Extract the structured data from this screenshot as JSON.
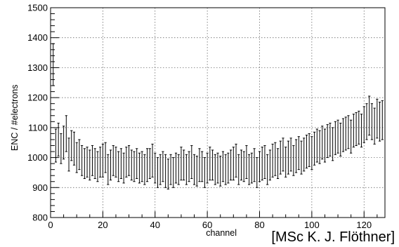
{
  "chart_data": {
    "type": "scatter",
    "style": "errorbar",
    "title": "",
    "xlabel": "channel",
    "ylabel": "ENC / #electrons",
    "xlim": [
      0,
      128
    ],
    "ylim": [
      800,
      1500
    ],
    "xticks": [
      0,
      20,
      40,
      60,
      80,
      100,
      120
    ],
    "yticks": [
      800,
      900,
      1000,
      1100,
      1200,
      1300,
      1400,
      1500
    ],
    "grid": true,
    "series": [
      {
        "x": [
          1,
          2,
          3,
          4,
          5,
          6,
          7,
          8,
          9,
          10,
          11,
          12,
          13,
          14,
          15,
          16,
          17,
          18,
          19,
          20,
          21,
          22,
          23,
          24,
          25,
          26,
          27,
          28,
          29,
          30,
          31,
          32,
          33,
          34,
          35,
          36,
          37,
          38,
          39,
          40,
          41,
          42,
          43,
          44,
          45,
          46,
          47,
          48,
          49,
          50,
          51,
          52,
          53,
          54,
          55,
          56,
          57,
          58,
          59,
          60,
          61,
          62,
          63,
          64,
          65,
          66,
          67,
          68,
          69,
          70,
          71,
          72,
          73,
          74,
          75,
          76,
          77,
          78,
          79,
          80,
          81,
          82,
          83,
          84,
          85,
          86,
          87,
          88,
          89,
          90,
          91,
          92,
          93,
          94,
          95,
          96,
          97,
          98,
          99,
          100,
          101,
          102,
          103,
          104,
          105,
          106,
          107,
          108,
          109,
          110,
          111,
          112,
          113,
          114,
          115,
          116,
          117,
          118,
          119,
          120,
          121,
          122,
          123,
          124,
          125,
          126,
          127
        ],
        "y": [
          1310,
          1040,
          1060,
          1030,
          1050,
          1080,
          1010,
          1040,
          1030,
          1000,
          1010,
          990,
          980,
          985,
          975,
          990,
          980,
          970,
          985,
          990,
          1000,
          960,
          975,
          990,
          985,
          970,
          980,
          965,
          985,
          990,
          975,
          970,
          980,
          965,
          970,
          960,
          975,
          980,
          990,
          965,
          950,
          960,
          970,
          955,
          945,
          960,
          950,
          965,
          960,
          980,
          975,
          960,
          970,
          985,
          960,
          955,
          975,
          970,
          950,
          965,
          980,
          975,
          960,
          965,
          955,
          970,
          960,
          965,
          975,
          980,
          990,
          960,
          975,
          970,
          985,
          960,
          965,
          975,
          950,
          970,
          980,
          985,
          960,
          975,
          990,
          995,
          980,
          1000,
          1010,
          985,
          1000,
          1010,
          990,
          1005,
          1015,
          1000,
          1010,
          1020,
          1025,
          1015,
          1030,
          1040,
          1035,
          1050,
          1040,
          1055,
          1060,
          1045,
          1065,
          1070,
          1060,
          1075,
          1080,
          1085,
          1070,
          1090,
          1095,
          1100,
          1090,
          1110,
          1120,
          1140,
          1120,
          1105,
          1130,
          1120,
          1125
        ],
        "error": [
          70,
          55,
          55,
          50,
          55,
          60,
          55,
          50,
          55,
          50,
          50,
          50,
          50,
          50,
          50,
          50,
          50,
          50,
          50,
          55,
          50,
          50,
          50,
          50,
          50,
          50,
          50,
          50,
          50,
          50,
          50,
          50,
          50,
          50,
          50,
          50,
          55,
          50,
          55,
          50,
          50,
          50,
          50,
          55,
          50,
          50,
          50,
          50,
          50,
          55,
          50,
          50,
          50,
          55,
          50,
          50,
          55,
          50,
          50,
          50,
          55,
          50,
          50,
          50,
          50,
          50,
          50,
          50,
          50,
          55,
          55,
          50,
          50,
          50,
          55,
          50,
          50,
          55,
          50,
          50,
          55,
          55,
          50,
          50,
          55,
          55,
          50,
          55,
          55,
          50,
          55,
          55,
          50,
          55,
          55,
          55,
          55,
          55,
          55,
          55,
          55,
          55,
          55,
          55,
          55,
          55,
          55,
          55,
          55,
          55,
          55,
          55,
          55,
          55,
          55,
          55,
          55,
          55,
          55,
          60,
          60,
          65,
          60,
          60,
          65,
          65,
          65
        ]
      }
    ]
  },
  "credit": "[MSc K. J. Flöthner]"
}
